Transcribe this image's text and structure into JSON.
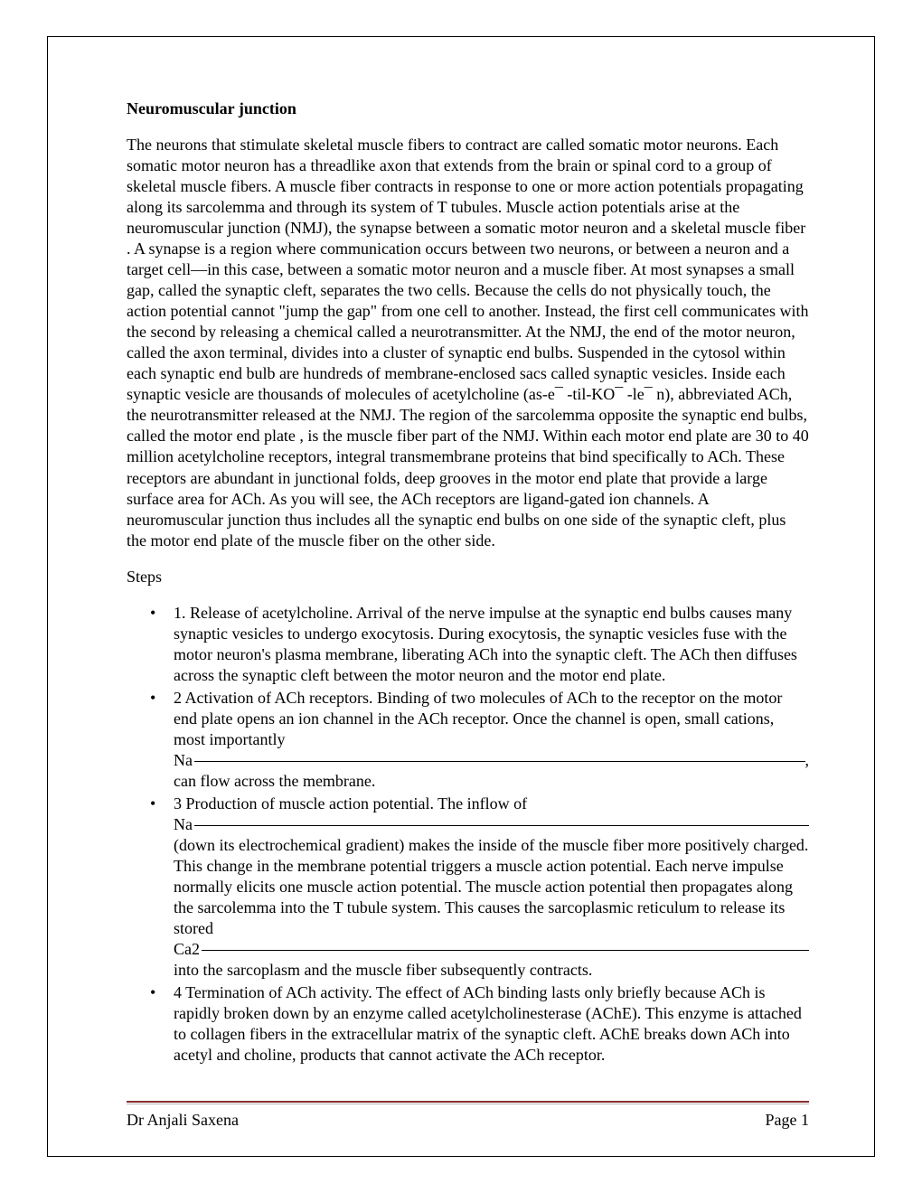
{
  "colors": {
    "page_bg": "#ffffff",
    "text": "#000000",
    "border": "#000000",
    "rule_top": "#8b2e2e",
    "rule_bottom": "#b7b7b7"
  },
  "typography": {
    "base_font": "Times New Roman",
    "base_size_pt": 13,
    "title_weight": "bold"
  },
  "title": "Neuromuscular junction",
  "main_paragraph": "The neurons that stimulate skeletal muscle fibers to contract are called somatic motor neurons. Each somatic motor neuron has a threadlike axon that extends from the brain or spinal cord to a group of skeletal muscle fibers. A muscle fiber contracts in response to one or more action potentials propagating along its sarcolemma and through its system of T tubules. Muscle action potentials arise at the neuromuscular junction (NMJ), the synapse between a somatic motor neuron and a skeletal muscle fiber . A synapse is a region where communication occurs between two neurons, or between a neuron and a target cell—in this case, between a somatic motor neuron and a muscle fiber. At most synapses a small gap, called the synaptic cleft, separates the two cells. Because the cells do not physically touch, the action potential cannot \"jump the gap\" from one cell to another. Instead, the first cell communicates with the second by releasing a chemical called a neurotransmitter. At the NMJ, the end of the motor neuron, called the axon terminal, divides into a cluster of synaptic end bulbs. Suspended in the cytosol within each synaptic end bulb are hundreds of membrane-enclosed sacs called synaptic vesicles. Inside each synaptic vesicle are thousands of molecules of acetylcholine (as-e¯ -til-KO¯ -le¯ n), abbreviated ACh, the neurotransmitter released at the NMJ. The region of the sarcolemma opposite the synaptic end bulbs, called the motor end plate , is the muscle fiber part of the NMJ. Within each motor end plate are 30 to 40 million acetylcholine receptors, integral transmembrane proteins that bind specifically to ACh. These receptors are abundant in junctional folds, deep grooves in the motor end plate that provide a large surface area for ACh. As you will see, the ACh receptors are ligand-gated ion channels. A neuromuscular junction thus includes all the synaptic end bulbs on one side of the synaptic cleft, plus the motor end plate of the muscle fiber on the other side.",
  "steps_label": "Steps",
  "steps": [
    {
      "text": "1. Release of acetylcholine. Arrival of the nerve impulse at the synaptic end bulbs causes many synaptic vesicles to undergo exocytosis. During exocytosis, the synaptic vesicles fuse with the motor neuron's plasma membrane, liberating ACh into the synaptic cleft. The ACh then diffuses across the synaptic cleft between the motor neuron and the motor end plate."
    },
    {
      "pre": "2 Activation of ACh receptors. Binding of two molecules of ACh to the receptor on the motor end plate opens an ion channel in the ACh receptor. Once the channel is open, small cations, most importantly",
      "ion_prefix": "Na",
      "ion_suffix": ",",
      "post": "can flow across the membrane."
    },
    {
      "pre": "3 Production of muscle action potential. The inflow of",
      "ion1_prefix": "Na",
      "mid": "(down its electrochemical gradient) makes the inside of the muscle fiber more positively charged. This change in the membrane potential triggers a muscle action potential. Each nerve impulse normally elicits one muscle action potential. The muscle action potential then propagates along the sarcolemma into the T tubule system. This causes the sarcoplasmic reticulum to release its stored",
      "ion2_prefix": "Ca2",
      "post": "into the sarcoplasm and the muscle fiber subsequently contracts."
    },
    {
      "text": "4 Termination of ACh activity. The effect of ACh binding lasts only briefly because ACh is rapidly broken down by an enzyme called acetylcholinesterase (AChE). This enzyme is attached to collagen fibers in the extracellular matrix of the synaptic cleft. AChE breaks down ACh into acetyl and choline, products that cannot activate the ACh receptor."
    }
  ],
  "footer": {
    "author": "Dr Anjali Saxena",
    "page": "Page 1"
  }
}
